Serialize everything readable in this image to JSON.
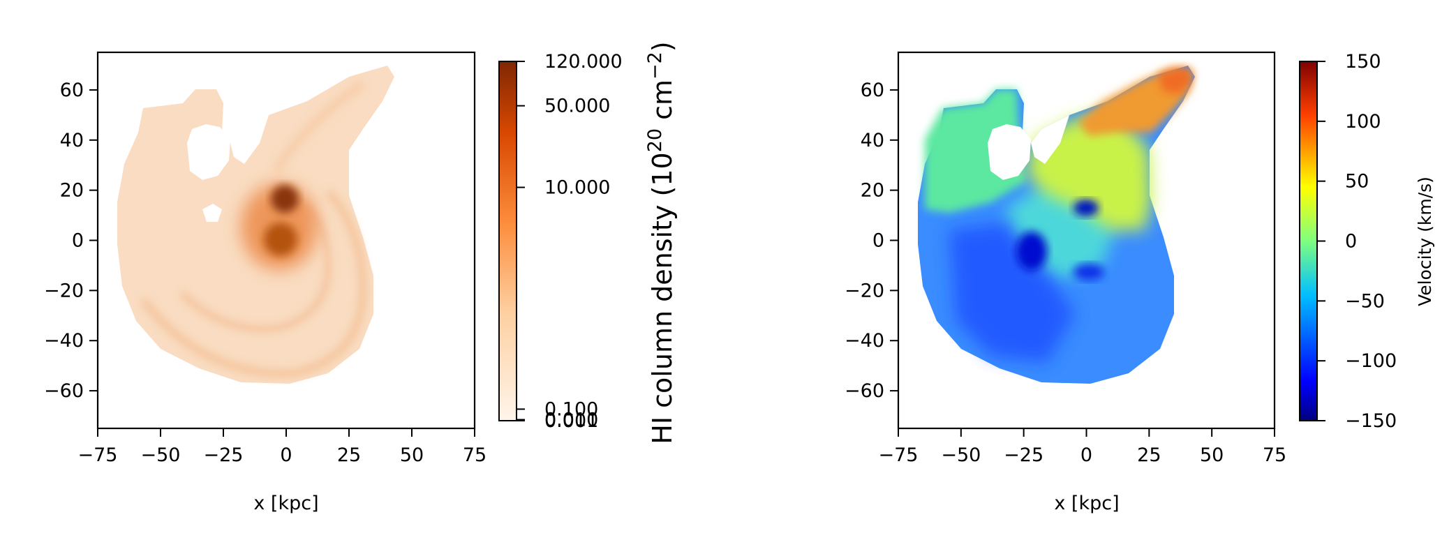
{
  "chart_data": [
    {
      "type": "heatmap",
      "xlabel": "x [kpc]",
      "ylabel": "",
      "xlim": [
        -75,
        75
      ],
      "ylim": [
        -75,
        75
      ],
      "xticks": [
        "−75",
        "−50",
        "−25",
        "0",
        "25",
        "50",
        "75"
      ],
      "xtick_values": [
        -75,
        -50,
        -25,
        0,
        25,
        50,
        75
      ],
      "yticks": [
        "60",
        "40",
        "20",
        "0",
        "−20",
        "−40",
        "−60"
      ],
      "ytick_values": [
        60,
        40,
        20,
        0,
        -20,
        -40,
        -60
      ],
      "colormap": "Oranges",
      "colorbar": {
        "label_prefix": "HI column density (10",
        "label_exp1": "20",
        "label_mid": " cm",
        "label_exp2": "−2",
        "label_suffix": ")",
        "scale": "symlog",
        "range": [
          0.001,
          120
        ],
        "ticks": [
          "120.000",
          "50.000",
          "10.000",
          "0.100",
          "0.010",
          "0.001"
        ],
        "tick_values": [
          120,
          50,
          10,
          0.1,
          0.01,
          0.001
        ],
        "colors": [
          "#fff5eb",
          "#fdd0a2",
          "#fd8d3c",
          "#d94801",
          "#7f2704"
        ]
      },
      "features": [
        {
          "name": "dense core north",
          "x": 0,
          "y": 17,
          "value": 120
        },
        {
          "name": "dense core south",
          "x": -1,
          "y": 0,
          "value": 50
        }
      ]
    },
    {
      "type": "heatmap",
      "xlabel": "x [kpc]",
      "ylabel": "",
      "xlim": [
        -75,
        75
      ],
      "ylim": [
        -75,
        75
      ],
      "xticks": [
        "−75",
        "−50",
        "−25",
        "0",
        "25",
        "50",
        "75"
      ],
      "xtick_values": [
        -75,
        -50,
        -25,
        0,
        25,
        50,
        75
      ],
      "yticks": [
        "60",
        "40",
        "20",
        "0",
        "−20",
        "−40",
        "−60"
      ],
      "ytick_values": [
        60,
        40,
        20,
        0,
        -20,
        -40,
        -60
      ],
      "colormap": "jet",
      "colorbar": {
        "label": "Velocity (km/s)",
        "range": [
          -150,
          150
        ],
        "ticks": [
          "150",
          "100",
          "50",
          "0",
          "−50",
          "−100",
          "−150"
        ],
        "tick_values": [
          150,
          100,
          50,
          0,
          -50,
          -100,
          -150
        ],
        "colors": [
          "#00007f",
          "#0000ff",
          "#007fff",
          "#00ffff",
          "#7fff7f",
          "#ffff00",
          "#ff7f00",
          "#ff0000",
          "#7f0000"
        ]
      },
      "features": [
        {
          "name": "receding tail",
          "x": 25,
          "y": 55,
          "value": 110
        },
        {
          "name": "approaching disk",
          "x": -30,
          "y": -25,
          "value": -90
        }
      ]
    }
  ]
}
